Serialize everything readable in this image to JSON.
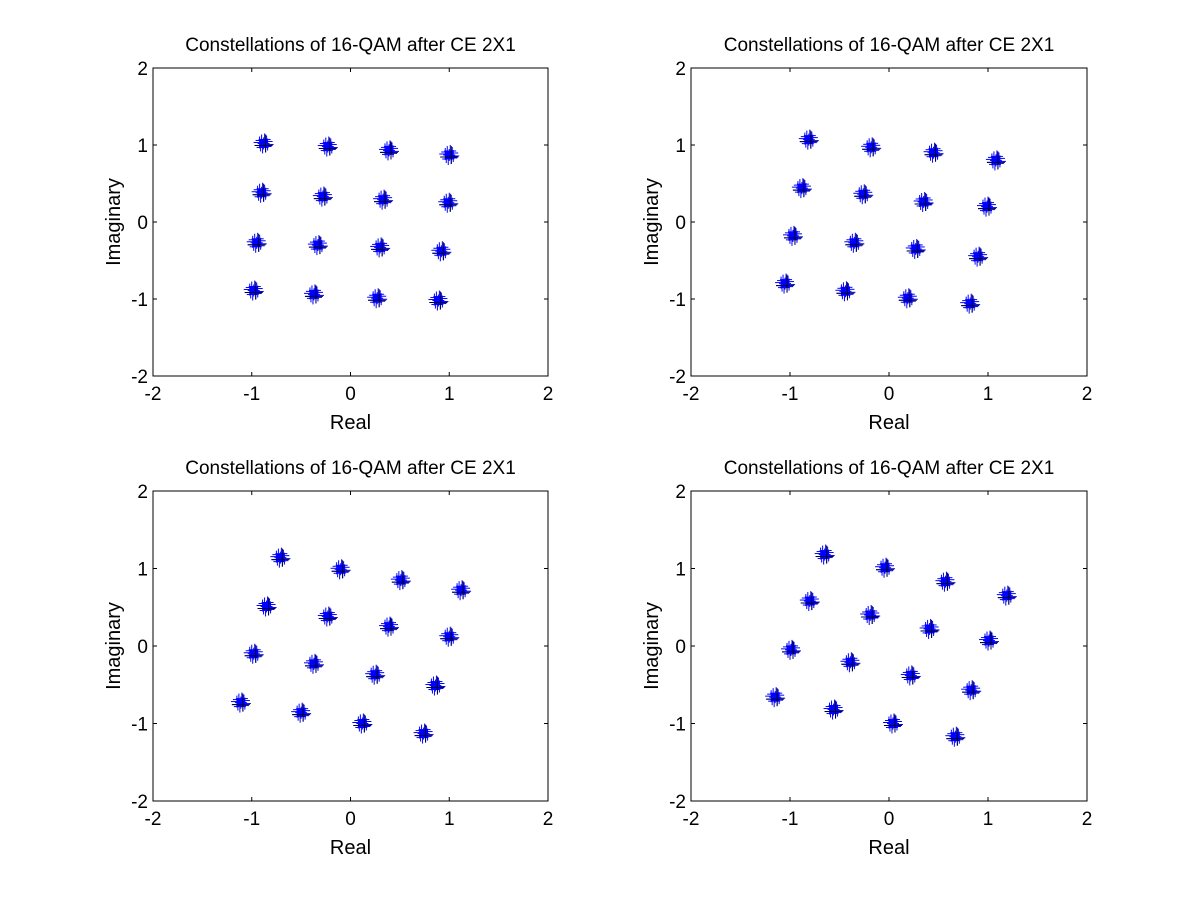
{
  "figure": {
    "background": "#ffffff",
    "marker_color": "#0000ff",
    "marker_shape": "plus"
  },
  "chart_data": [
    {
      "type": "scatter",
      "title": "Constellations of 16-QAM after CE 2X1",
      "xlabel": "Real",
      "ylabel": "Imaginary",
      "xlim": [
        -2,
        2
      ],
      "ylim": [
        -2,
        2
      ],
      "xticks": [
        "-2",
        "-1",
        "0",
        "1",
        "2"
      ],
      "yticks": [
        "-2",
        "-1",
        "0",
        "1",
        "2"
      ],
      "grid": false,
      "legend": "none",
      "series": [
        {
          "color": "#0000ff",
          "marker": "+",
          "x": [
            -0.88,
            -0.23,
            0.39,
            1.0,
            -0.9,
            -0.28,
            0.33,
            0.99,
            -0.95,
            -0.33,
            0.3,
            0.92,
            -0.98,
            -0.37,
            0.27,
            0.89
          ],
          "y": [
            1.02,
            0.98,
            0.93,
            0.87,
            0.38,
            0.33,
            0.29,
            0.25,
            -0.27,
            -0.3,
            -0.33,
            -0.38,
            -0.89,
            -0.94,
            -0.99,
            -1.02
          ]
        }
      ]
    },
    {
      "type": "scatter",
      "title": "Constellations of 16-QAM after CE 2X1",
      "xlabel": "Real",
      "ylabel": "Imaginary",
      "xlim": [
        -2,
        2
      ],
      "ylim": [
        -2,
        2
      ],
      "xticks": [
        "-2",
        "-1",
        "0",
        "1",
        "2"
      ],
      "yticks": [
        "-2",
        "-1",
        "0",
        "1",
        "2"
      ],
      "grid": false,
      "legend": "none",
      "series": [
        {
          "color": "#0000ff",
          "marker": "+",
          "x": [
            -0.81,
            -0.18,
            0.45,
            1.08,
            -0.88,
            -0.26,
            0.35,
            0.99,
            -0.97,
            -0.35,
            0.27,
            0.9,
            -1.05,
            -0.44,
            0.19,
            0.82
          ],
          "y": [
            1.07,
            0.97,
            0.9,
            0.8,
            0.44,
            0.36,
            0.26,
            0.2,
            -0.18,
            -0.27,
            -0.35,
            -0.45,
            -0.8,
            -0.9,
            -0.99,
            -1.06
          ]
        }
      ]
    },
    {
      "type": "scatter",
      "title": "Constellations of 16-QAM after CE 2X1",
      "xlabel": "Real",
      "ylabel": "Imaginary",
      "xlim": [
        -2,
        2
      ],
      "ylim": [
        -2,
        2
      ],
      "xticks": [
        "-2",
        "-1",
        "0",
        "1",
        "2"
      ],
      "yticks": [
        "-2",
        "-1",
        "0",
        "1",
        "2"
      ],
      "grid": false,
      "legend": "none",
      "series": [
        {
          "color": "#0000ff",
          "marker": "+",
          "x": [
            -0.71,
            -0.1,
            0.51,
            1.12,
            -0.85,
            -0.23,
            0.39,
            1.0,
            -0.98,
            -0.37,
            0.25,
            0.86,
            -1.11,
            -0.5,
            0.12,
            0.74
          ],
          "y": [
            1.14,
            0.99,
            0.85,
            0.72,
            0.51,
            0.38,
            0.25,
            0.12,
            -0.1,
            -0.23,
            -0.37,
            -0.51,
            -0.73,
            -0.86,
            -1.0,
            -1.13
          ]
        }
      ]
    },
    {
      "type": "scatter",
      "title": "Constellations of 16-QAM after CE 2X1",
      "xlabel": "Real",
      "ylabel": "Imaginary",
      "xlim": [
        -2,
        2
      ],
      "ylim": [
        -2,
        2
      ],
      "xticks": [
        "-2",
        "-1",
        "0",
        "1",
        "2"
      ],
      "yticks": [
        "-2",
        "-1",
        "0",
        "1",
        "2"
      ],
      "grid": false,
      "legend": "none",
      "series": [
        {
          "color": "#0000ff",
          "marker": "+",
          "x": [
            -0.65,
            -0.04,
            0.57,
            1.19,
            -0.8,
            -0.19,
            0.41,
            1.01,
            -0.99,
            -0.39,
            0.22,
            0.83,
            -1.15,
            -0.56,
            0.04,
            0.67
          ],
          "y": [
            1.18,
            1.01,
            0.83,
            0.65,
            0.58,
            0.4,
            0.22,
            0.07,
            -0.05,
            -0.21,
            -0.38,
            -0.57,
            -0.66,
            -0.82,
            -1.0,
            -1.17
          ]
        }
      ]
    }
  ]
}
